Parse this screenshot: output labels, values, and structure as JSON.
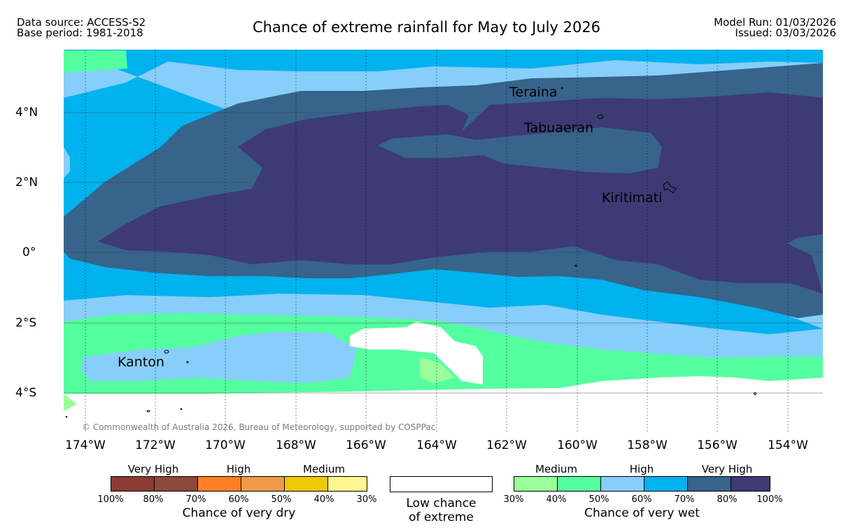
{
  "header": {
    "data_source": "Data source: ACCESS-S2",
    "base_period": "Base period: 1981-2018",
    "title": "Chance of extreme rainfall for May to July 2026",
    "model_run": "Model Run: 01/03/2026",
    "issued": "Issued: 03/03/2026"
  },
  "map": {
    "lat_labels": [
      "4°N",
      "2°N",
      "0°",
      "2°S",
      "4°S"
    ],
    "lon_labels": [
      "174°W",
      "172°W",
      "170°W",
      "168°W",
      "166°W",
      "164°W",
      "162°W",
      "160°W",
      "158°W",
      "156°W",
      "154°W"
    ],
    "places": [
      "Teraina",
      "Tabuaeran",
      "Kiritimati",
      "Kanton"
    ],
    "copyright": "© Commonwealth of Australia 2026, Bureau of Meteorology, supported by COSPPac"
  },
  "legend": {
    "dry": {
      "categories": [
        "Very High",
        "High",
        "Medium"
      ],
      "ticks": [
        "100%",
        "80%",
        "70%",
        "60%",
        "50%",
        "40%",
        "30%"
      ],
      "colors": [
        "#8b3a33",
        "#8b4a3a",
        "#ff7f24",
        "#ee9a4a",
        "#eec900",
        "#fff68f"
      ],
      "caption": "Chance of very dry"
    },
    "low": {
      "caption_line1": "Low chance",
      "caption_line2": "of extreme",
      "color": "#ffffff"
    },
    "wet": {
      "categories": [
        "Medium",
        "High",
        "Very High"
      ],
      "ticks": [
        "30%",
        "40%",
        "50%",
        "60%",
        "70%",
        "80%",
        "100%"
      ],
      "colors": [
        "#9aff9a",
        "#54ff9f",
        "#87cefa",
        "#00b2ee",
        "#36648b",
        "#3d3a75"
      ],
      "caption": "Chance of very wet"
    }
  }
}
